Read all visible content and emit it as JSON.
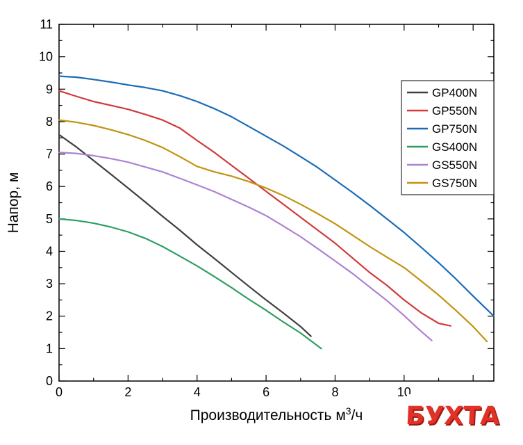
{
  "watermark": {
    "text": "БУХТА",
    "color": "#e23228"
  },
  "chart_data": {
    "type": "line",
    "title": "",
    "xlabel": "Производительность м³/ч",
    "ylabel": "Напор, м",
    "xlim": [
      0,
      12.6
    ],
    "ylim": [
      0,
      11
    ],
    "x_major_ticks": [
      0,
      2,
      4,
      6,
      8,
      10,
      12
    ],
    "x_tick_labels": [
      "0",
      "2",
      "4",
      "6",
      "8",
      "10",
      ""
    ],
    "x_minor_ticks": [
      1,
      3,
      5,
      7,
      9,
      11
    ],
    "y_major_ticks": [
      0,
      1,
      2,
      3,
      4,
      5,
      6,
      7,
      8,
      9,
      10,
      11
    ],
    "y_tick_labels": [
      "0",
      "1",
      "2",
      "3",
      "4",
      "5",
      "6",
      "7",
      "8",
      "9",
      "10",
      "11"
    ],
    "y_minor_ticks": [
      0.5,
      1.5,
      2.5,
      3.5,
      4.5,
      5.5,
      6.5,
      7.5,
      8.5,
      9.5,
      10.5
    ],
    "grid": false,
    "legend_position": "top-right",
    "series": [
      {
        "name": "GP400N",
        "color": "#3f3f3f",
        "points": [
          [
            0,
            7.6
          ],
          [
            0.5,
            7.22
          ],
          [
            1,
            6.8
          ],
          [
            1.5,
            6.38
          ],
          [
            2,
            5.95
          ],
          [
            2.5,
            5.52
          ],
          [
            3,
            5.08
          ],
          [
            3.5,
            4.65
          ],
          [
            4,
            4.2
          ],
          [
            4.5,
            3.78
          ],
          [
            5,
            3.35
          ],
          [
            5.5,
            2.92
          ],
          [
            6,
            2.5
          ],
          [
            6.5,
            2.1
          ],
          [
            7,
            1.68
          ],
          [
            7.3,
            1.38
          ]
        ]
      },
      {
        "name": "GP550N",
        "color": "#d03a3a",
        "points": [
          [
            0,
            8.95
          ],
          [
            0.5,
            8.78
          ],
          [
            1,
            8.62
          ],
          [
            1.5,
            8.5
          ],
          [
            2,
            8.38
          ],
          [
            2.5,
            8.22
          ],
          [
            3,
            8.05
          ],
          [
            3.5,
            7.8
          ],
          [
            4,
            7.42
          ],
          [
            4.5,
            7.05
          ],
          [
            5,
            6.65
          ],
          [
            5.5,
            6.25
          ],
          [
            6,
            5.85
          ],
          [
            6.5,
            5.45
          ],
          [
            7,
            5.05
          ],
          [
            7.5,
            4.65
          ],
          [
            8,
            4.25
          ],
          [
            8.5,
            3.8
          ],
          [
            9,
            3.35
          ],
          [
            9.5,
            2.95
          ],
          [
            10,
            2.5
          ],
          [
            10.5,
            2.1
          ],
          [
            11,
            1.78
          ],
          [
            11.35,
            1.7
          ]
        ]
      },
      {
        "name": "GP750N",
        "color": "#1a6cb8",
        "points": [
          [
            0,
            9.4
          ],
          [
            0.5,
            9.37
          ],
          [
            1,
            9.3
          ],
          [
            1.5,
            9.22
          ],
          [
            2,
            9.13
          ],
          [
            2.5,
            9.05
          ],
          [
            3,
            8.95
          ],
          [
            3.5,
            8.8
          ],
          [
            4,
            8.62
          ],
          [
            4.5,
            8.4
          ],
          [
            5,
            8.15
          ],
          [
            5.5,
            7.85
          ],
          [
            6,
            7.55
          ],
          [
            6.5,
            7.25
          ],
          [
            7,
            6.92
          ],
          [
            7.5,
            6.58
          ],
          [
            8,
            6.2
          ],
          [
            8.5,
            5.82
          ],
          [
            9,
            5.42
          ],
          [
            9.5,
            5.0
          ],
          [
            10,
            4.58
          ],
          [
            10.5,
            4.12
          ],
          [
            11,
            3.65
          ],
          [
            11.5,
            3.15
          ],
          [
            12,
            2.62
          ],
          [
            12.6,
            2.0
          ]
        ]
      },
      {
        "name": "GS400N",
        "color": "#2f9e63",
        "points": [
          [
            0,
            5.0
          ],
          [
            0.5,
            4.95
          ],
          [
            1,
            4.87
          ],
          [
            1.5,
            4.75
          ],
          [
            2,
            4.6
          ],
          [
            2.5,
            4.4
          ],
          [
            3,
            4.15
          ],
          [
            3.5,
            3.85
          ],
          [
            4,
            3.55
          ],
          [
            4.5,
            3.22
          ],
          [
            5,
            2.88
          ],
          [
            5.5,
            2.52
          ],
          [
            6,
            2.18
          ],
          [
            6.5,
            1.82
          ],
          [
            7,
            1.48
          ],
          [
            7.6,
            1.0
          ]
        ]
      },
      {
        "name": "GS550N",
        "color": "#ab82d4",
        "points": [
          [
            0,
            7.05
          ],
          [
            0.5,
            7.02
          ],
          [
            1,
            6.95
          ],
          [
            1.5,
            6.86
          ],
          [
            2,
            6.75
          ],
          [
            2.5,
            6.6
          ],
          [
            3,
            6.45
          ],
          [
            3.5,
            6.25
          ],
          [
            4,
            6.05
          ],
          [
            4.5,
            5.84
          ],
          [
            5,
            5.6
          ],
          [
            5.5,
            5.36
          ],
          [
            6,
            5.1
          ],
          [
            6.5,
            4.78
          ],
          [
            7,
            4.45
          ],
          [
            7.5,
            4.08
          ],
          [
            8,
            3.7
          ],
          [
            8.5,
            3.32
          ],
          [
            9,
            2.9
          ],
          [
            9.5,
            2.48
          ],
          [
            10,
            2.02
          ],
          [
            10.4,
            1.62
          ],
          [
            10.8,
            1.25
          ]
        ]
      },
      {
        "name": "GS750N",
        "color": "#c2930f",
        "points": [
          [
            0,
            8.05
          ],
          [
            0.5,
            7.98
          ],
          [
            1,
            7.88
          ],
          [
            1.5,
            7.75
          ],
          [
            2,
            7.6
          ],
          [
            2.5,
            7.42
          ],
          [
            3,
            7.2
          ],
          [
            3.5,
            6.92
          ],
          [
            4,
            6.62
          ],
          [
            4.5,
            6.45
          ],
          [
            5,
            6.32
          ],
          [
            5.5,
            6.15
          ],
          [
            6,
            5.95
          ],
          [
            6.5,
            5.72
          ],
          [
            7,
            5.45
          ],
          [
            7.5,
            5.16
          ],
          [
            8,
            4.85
          ],
          [
            8.5,
            4.5
          ],
          [
            9,
            4.15
          ],
          [
            9.5,
            3.82
          ],
          [
            10,
            3.5
          ],
          [
            10.5,
            3.08
          ],
          [
            11,
            2.65
          ],
          [
            11.5,
            2.18
          ],
          [
            12,
            1.68
          ],
          [
            12.4,
            1.22
          ]
        ]
      }
    ]
  }
}
